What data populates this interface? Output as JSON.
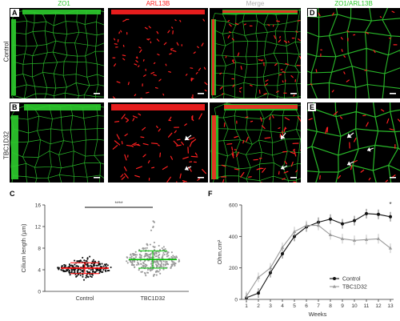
{
  "figure": {
    "columns": {
      "zo1": "ZO1",
      "arl13b": "ARL13B",
      "merge": "Merge",
      "zo1_arl13b": "ZO1/ARL13B"
    },
    "rows": {
      "control": "Control",
      "tbc1d32": "TBC1D32"
    },
    "panel_letters": {
      "a": "A",
      "b": "B",
      "c": "C",
      "d": "D",
      "e": "E",
      "f": "F"
    },
    "colors": {
      "zo1": "#2ecc2e",
      "arl13b": "#ff2020",
      "merge_title": "#c0c0c0"
    }
  },
  "chart_data": [
    {
      "type": "scatter",
      "panel": "C",
      "ylabel": "Cilium length (µm)",
      "ylim": [
        0,
        16
      ],
      "yticks": [
        0,
        4,
        8,
        12,
        16
      ],
      "categories": [
        "Control",
        "TBC1D32"
      ],
      "series": [
        {
          "name": "Control",
          "mean": 4.3,
          "sd": 1.0,
          "min": 1.2,
          "max": 7.0
        },
        {
          "name": "TBC1D32",
          "mean": 5.9,
          "sd": 1.6,
          "min": 1.5,
          "max": 13.2
        }
      ],
      "significance": "****",
      "colors": {
        "control_points": "#111111",
        "control_mean": "#ff0000",
        "tbc_points": "#9a9a9a",
        "tbc_mean": "#00c000"
      }
    },
    {
      "type": "line",
      "panel": "F",
      "ylabel": "Ohm.cm²",
      "xlabel": "Weeks",
      "x": [
        1,
        2,
        3,
        4,
        5,
        6,
        7,
        8,
        9,
        10,
        11,
        12,
        13
      ],
      "ylim": [
        0,
        600
      ],
      "yticks": [
        0,
        200,
        400,
        600
      ],
      "series": [
        {
          "name": "Control",
          "values": [
            10,
            40,
            170,
            290,
            400,
            460,
            490,
            510,
            480,
            500,
            545,
            540,
            525
          ],
          "color": "#111111"
        },
        {
          "name": "TBC1D32",
          "values": [
            20,
            140,
            200,
            330,
            430,
            470,
            470,
            410,
            385,
            375,
            380,
            385,
            325
          ],
          "color": "#9a9a9a"
        }
      ],
      "significance": "*",
      "legend_position": "bottom-right"
    }
  ]
}
